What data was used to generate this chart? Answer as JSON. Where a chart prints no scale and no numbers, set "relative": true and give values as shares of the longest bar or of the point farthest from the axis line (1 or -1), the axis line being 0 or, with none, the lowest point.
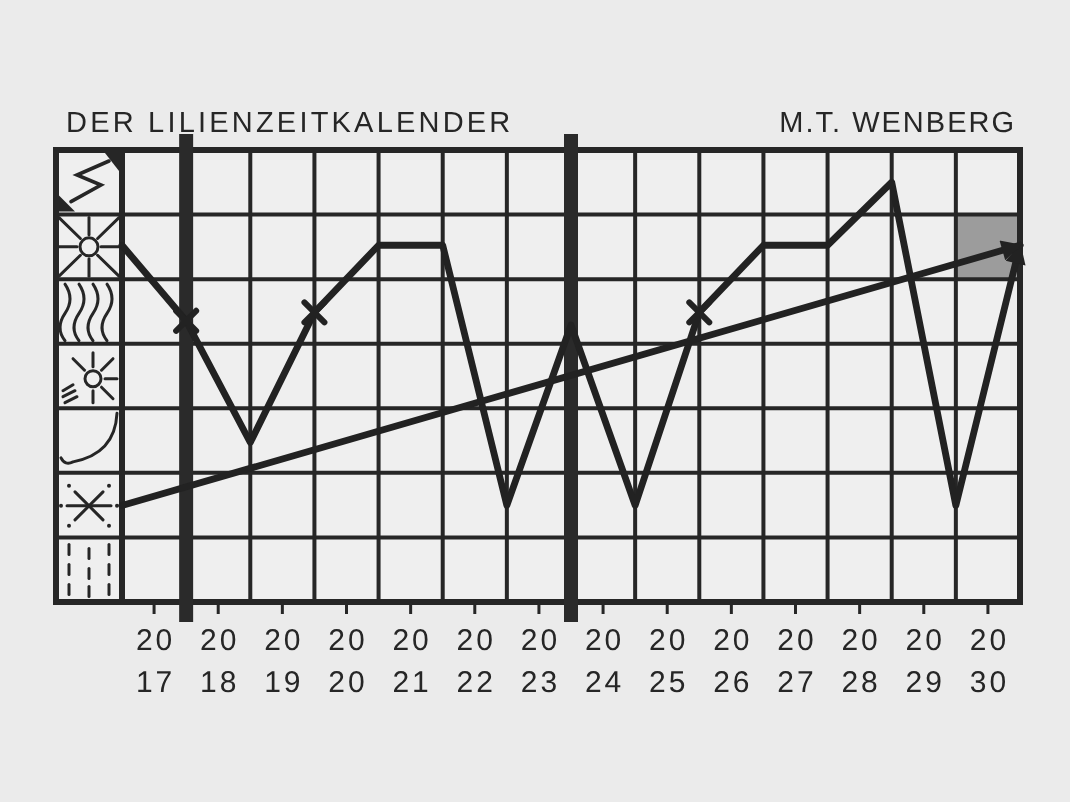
{
  "chart_data": {
    "type": "line",
    "title": "DER LILIENZEITKALENDER",
    "annotations": [
      "M.T. WENBERG"
    ],
    "relative": true,
    "xlim": [
      2016.5,
      2030.5
    ],
    "xticks": [
      2017,
      2018,
      2019,
      2020,
      2021,
      2022,
      2023,
      2024,
      2025,
      2026,
      2027,
      2028,
      2029,
      2030
    ],
    "grid": true,
    "series": [
      {
        "color": "#222222",
        "x": [
          2016.5,
          2017.5,
          2018.5,
          2019.5,
          2020.5,
          2021.5,
          2022.5,
          2023.5,
          2024.5,
          2025.5,
          2026.5,
          2027.5,
          2028.5,
          2029.5,
          2030.5
        ],
        "values": [
          0.85,
          0.67,
          0.38,
          0.69,
          0.85,
          0.85,
          0.23,
          0.66,
          0.23,
          0.69,
          0.85,
          0.85,
          1,
          0.23,
          0.85
        ]
      },
      {
        "color": "#222222",
        "x": [
          2016.5,
          2030.5
        ],
        "values": [
          0.23,
          0.85
        ]
      },
      {
        "type": "scatter",
        "marker": "cross",
        "color": "#222222",
        "x": [
          2017.5,
          2019.5,
          2025.5
        ],
        "values": [
          0.67,
          0.69,
          0.69
        ]
      }
    ],
    "ref_lines": [
      {
        "axis": "x",
        "value": 2017.5,
        "color": "#2a2a2a"
      },
      {
        "axis": "x",
        "value": 2023.5,
        "color": "#2a2a2a"
      }
    ]
  }
}
